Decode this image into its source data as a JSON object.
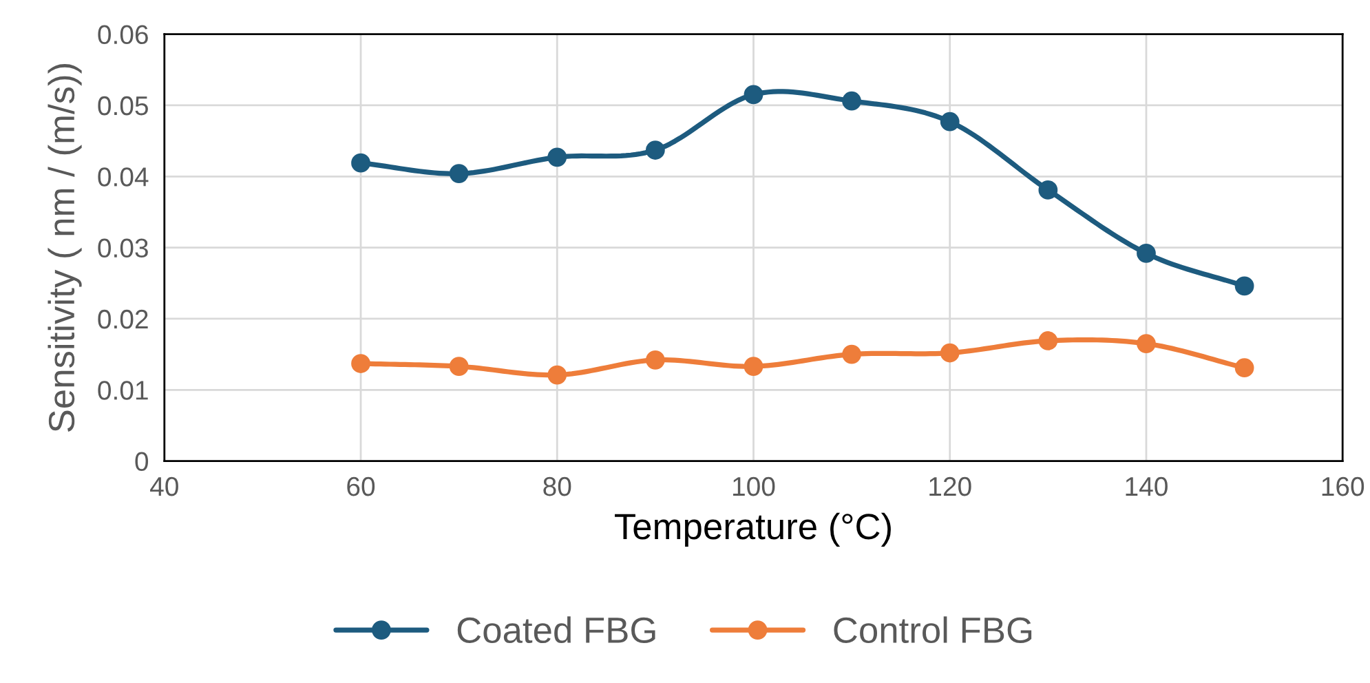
{
  "chart_data": {
    "type": "line",
    "xlabel": "Temperature (°C)",
    "ylabel": "Sensitivity ( nm / (m/s))",
    "x": [
      60,
      70,
      80,
      90,
      100,
      110,
      120,
      130,
      140,
      150
    ],
    "series": [
      {
        "name": "Coated FBG",
        "color": "#1d5b7f",
        "values": [
          0.0419,
          0.0404,
          0.0427,
          0.0437,
          0.0515,
          0.0506,
          0.0477,
          0.0381,
          0.0292,
          0.0246
        ]
      },
      {
        "name": "Control FBG",
        "color": "#ee7d3a",
        "values": [
          0.0137,
          0.0133,
          0.0121,
          0.0142,
          0.0133,
          0.015,
          0.0152,
          0.0169,
          0.0165,
          0.0131
        ]
      }
    ],
    "xlim": [
      40,
      160
    ],
    "xticks": [
      40,
      60,
      80,
      100,
      120,
      140,
      160
    ],
    "ylim": [
      0,
      0.06
    ],
    "yticks": [
      0,
      0.01,
      0.02,
      0.03,
      0.04,
      0.05,
      0.06
    ],
    "grid": true,
    "legend": "bottom",
    "marker": "circle",
    "line_style": "solid"
  }
}
